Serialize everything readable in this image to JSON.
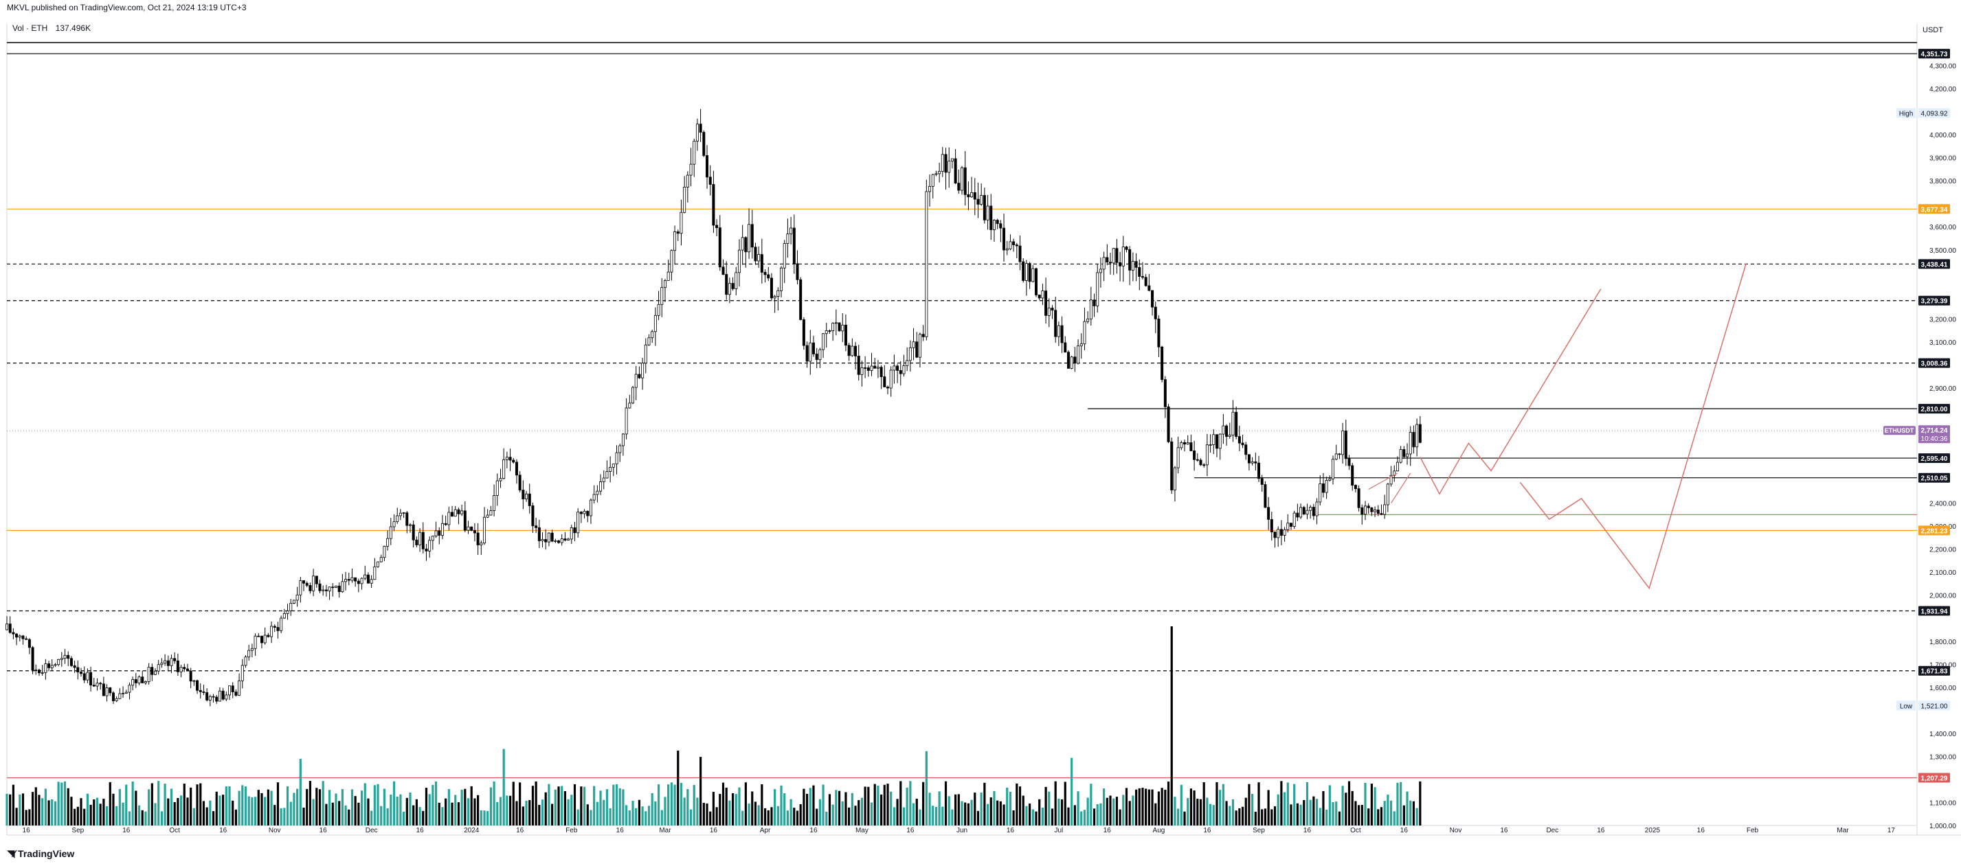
{
  "header": {
    "published_by": "MKVL published on TradingView.com, Oct 21, 2024 13:19 UTC+3"
  },
  "volume_legend": {
    "label": "Vol · ETH",
    "value": "137.496K"
  },
  "price_axis": {
    "currency": "USDT",
    "tick_labels": [
      "4,300.00",
      "4,200.00",
      "4,000.00",
      "3,900.00",
      "3,800.00",
      "3,600.00",
      "3,500.00",
      "3,200.00",
      "3,100.00",
      "2,900.00",
      "2,400.00",
      "2,300.00",
      "2,200.00",
      "2,100.00",
      "2,000.00",
      "1,800.00",
      "1,700.00",
      "1,600.00",
      "1,400.00",
      "1,300.00",
      "1,100.00",
      "1,000.00"
    ]
  },
  "footer": {
    "brand": "TradingView",
    "logo_icon": "tradingview-logo-icon"
  },
  "colors": {
    "background": "#ffffff",
    "candle_up": "#ffffff",
    "candle_down": "#000000",
    "volume_up": "#26a69a",
    "volume_down": "#000000",
    "hline_orange": "#f7a21a",
    "hline_red": "#e05a5a",
    "projection": "#d9726a",
    "symbol_badge": "#9c6fb5",
    "high_low_label": "#e3effd"
  },
  "chart_data": {
    "type": "candlestick",
    "symbol": "ETHUSDT",
    "timeframe": "1D",
    "x_start": "2023-08-10",
    "x_end": "2025-03-24",
    "ylim": [
      1000,
      4400
    ],
    "x_tick_labels": [
      {
        "date": "2023-08-16",
        "label": "16"
      },
      {
        "date": "2023-09-01",
        "label": "Sep"
      },
      {
        "date": "2023-09-16",
        "label": "16"
      },
      {
        "date": "2023-10-01",
        "label": "Oct"
      },
      {
        "date": "2023-10-16",
        "label": "16"
      },
      {
        "date": "2023-11-01",
        "label": "Nov"
      },
      {
        "date": "2023-11-16",
        "label": "16"
      },
      {
        "date": "2023-12-01",
        "label": "Dec"
      },
      {
        "date": "2023-12-16",
        "label": "16"
      },
      {
        "date": "2024-01-01",
        "label": "2024"
      },
      {
        "date": "2024-01-16",
        "label": "16"
      },
      {
        "date": "2024-02-01",
        "label": "Feb"
      },
      {
        "date": "2024-02-16",
        "label": "16"
      },
      {
        "date": "2024-03-01",
        "label": "Mar"
      },
      {
        "date": "2024-03-16",
        "label": "16"
      },
      {
        "date": "2024-04-01",
        "label": "Apr"
      },
      {
        "date": "2024-04-16",
        "label": "16"
      },
      {
        "date": "2024-05-01",
        "label": "May"
      },
      {
        "date": "2024-05-16",
        "label": "16"
      },
      {
        "date": "2024-06-01",
        "label": "Jun"
      },
      {
        "date": "2024-06-16",
        "label": "16"
      },
      {
        "date": "2024-07-01",
        "label": "Jul"
      },
      {
        "date": "2024-07-16",
        "label": "16"
      },
      {
        "date": "2024-08-01",
        "label": "Aug"
      },
      {
        "date": "2024-08-16",
        "label": "16"
      },
      {
        "date": "2024-09-01",
        "label": "Sep"
      },
      {
        "date": "2024-09-16",
        "label": "16"
      },
      {
        "date": "2024-10-01",
        "label": "Oct"
      },
      {
        "date": "2024-10-16",
        "label": "16"
      },
      {
        "date": "2024-11-01",
        "label": "Nov"
      },
      {
        "date": "2024-11-16",
        "label": "16"
      },
      {
        "date": "2024-12-01",
        "label": "Dec"
      },
      {
        "date": "2024-12-16",
        "label": "16"
      },
      {
        "date": "2025-01-01",
        "label": "2025"
      },
      {
        "date": "2025-01-16",
        "label": "16"
      },
      {
        "date": "2025-02-01",
        "label": "Feb"
      },
      {
        "date": "2025-03-01",
        "label": "Mar"
      },
      {
        "date": "2025-03-16",
        "label": "17"
      }
    ],
    "price_anchors": [
      {
        "date": "2023-08-10",
        "price": 1850
      },
      {
        "date": "2023-08-16",
        "price": 1820
      },
      {
        "date": "2023-08-18",
        "price": 1680
      },
      {
        "date": "2023-08-29",
        "price": 1720
      },
      {
        "date": "2023-09-11",
        "price": 1560
      },
      {
        "date": "2023-09-20",
        "price": 1640
      },
      {
        "date": "2023-10-01",
        "price": 1710
      },
      {
        "date": "2023-10-12",
        "price": 1550
      },
      {
        "date": "2023-10-20",
        "price": 1590
      },
      {
        "date": "2023-10-24",
        "price": 1780
      },
      {
        "date": "2023-11-01",
        "price": 1850
      },
      {
        "date": "2023-11-10",
        "price": 2060
      },
      {
        "date": "2023-11-22",
        "price": 2030
      },
      {
        "date": "2023-12-01",
        "price": 2090
      },
      {
        "date": "2023-12-09",
        "price": 2370
      },
      {
        "date": "2023-12-18",
        "price": 2200
      },
      {
        "date": "2023-12-27",
        "price": 2380
      },
      {
        "date": "2024-01-03",
        "price": 2210
      },
      {
        "date": "2024-01-12",
        "price": 2620
      },
      {
        "date": "2024-01-23",
        "price": 2220
      },
      {
        "date": "2024-02-01",
        "price": 2290
      },
      {
        "date": "2024-02-12",
        "price": 2500
      },
      {
        "date": "2024-02-22",
        "price": 2980
      },
      {
        "date": "2024-03-05",
        "price": 3620
      },
      {
        "date": "2024-03-12",
        "price": 4040
      },
      {
        "date": "2024-03-20",
        "price": 3280
      },
      {
        "date": "2024-03-27",
        "price": 3580
      },
      {
        "date": "2024-04-04",
        "price": 3290
      },
      {
        "date": "2024-04-09",
        "price": 3650
      },
      {
        "date": "2024-04-13",
        "price": 3050
      },
      {
        "date": "2024-04-18",
        "price": 3070
      },
      {
        "date": "2024-04-23",
        "price": 3190
      },
      {
        "date": "2024-05-01",
        "price": 2960
      },
      {
        "date": "2024-05-10",
        "price": 2930
      },
      {
        "date": "2024-05-20",
        "price": 3100
      },
      {
        "date": "2024-05-21",
        "price": 3710
      },
      {
        "date": "2024-05-27",
        "price": 3900
      },
      {
        "date": "2024-06-07",
        "price": 3690
      },
      {
        "date": "2024-06-17",
        "price": 3480
      },
      {
        "date": "2024-06-24",
        "price": 3350
      },
      {
        "date": "2024-07-05",
        "price": 3000
      },
      {
        "date": "2024-07-15",
        "price": 3440
      },
      {
        "date": "2024-07-22",
        "price": 3490
      },
      {
        "date": "2024-07-30",
        "price": 3280
      },
      {
        "date": "2024-08-04",
        "price": 2700
      },
      {
        "date": "2024-08-05",
        "price": 2430
      },
      {
        "date": "2024-08-08",
        "price": 2680
      },
      {
        "date": "2024-08-15",
        "price": 2600
      },
      {
        "date": "2024-08-24",
        "price": 2760
      },
      {
        "date": "2024-09-01",
        "price": 2500
      },
      {
        "date": "2024-09-06",
        "price": 2230
      },
      {
        "date": "2024-09-12",
        "price": 2360
      },
      {
        "date": "2024-09-18",
        "price": 2380
      },
      {
        "date": "2024-09-27",
        "price": 2680
      },
      {
        "date": "2024-10-03",
        "price": 2350
      },
      {
        "date": "2024-10-10",
        "price": 2390
      },
      {
        "date": "2024-10-14",
        "price": 2610
      },
      {
        "date": "2024-10-21",
        "price": 2710
      }
    ],
    "volume": {
      "series_name": "Vol · ETH",
      "last_value": "137.496K",
      "spikes": [
        {
          "date": "2023-11-09",
          "value": "high"
        },
        {
          "date": "2024-01-11",
          "value": "high"
        },
        {
          "date": "2024-03-05",
          "value": "high"
        },
        {
          "date": "2024-03-12",
          "value": "high"
        },
        {
          "date": "2024-05-21",
          "value": "high"
        },
        {
          "date": "2024-07-05",
          "value": "high"
        },
        {
          "date": "2024-08-05",
          "value": "extreme"
        }
      ]
    },
    "horizontal_levels": [
      {
        "price": 4351.73,
        "label": "4,351.73",
        "style": "solid",
        "color": "#000000",
        "badge": "dark"
      },
      {
        "price": 3677.34,
        "label": "3,677.34",
        "style": "solid",
        "color": "#f7a21a",
        "badge": "orange"
      },
      {
        "price": 3438.41,
        "label": "3,438.41",
        "style": "dashed",
        "color": "#000000",
        "badge": "dark"
      },
      {
        "price": 3279.39,
        "label": "3,279.39",
        "style": "dashed",
        "color": "#000000",
        "badge": "dark"
      },
      {
        "price": 3008.36,
        "label": "3,008.36",
        "style": "dashed",
        "color": "#000000",
        "badge": "dark"
      },
      {
        "price": 2810.0,
        "label": "2,810.00",
        "style": "solid",
        "color": "#000000",
        "badge": "dark",
        "from": "2024-07-10"
      },
      {
        "price": 2595.4,
        "label": "2,595.40",
        "style": "solid",
        "color": "#000000",
        "badge": "dark",
        "from": "2024-09-28"
      },
      {
        "price": 2510.05,
        "label": "2,510.05",
        "style": "solid",
        "color": "#000000",
        "badge": "dark",
        "from": "2024-08-12"
      },
      {
        "price": 2281.23,
        "label": "2,281.23",
        "style": "solid",
        "color": "#f7a21a",
        "badge": "orange"
      },
      {
        "price": 1931.94,
        "label": "1,931.94",
        "style": "dashed",
        "color": "#000000",
        "badge": "dark"
      },
      {
        "price": 1671.83,
        "label": "1,671.83",
        "style": "dashed",
        "color": "#000000",
        "badge": "dark"
      },
      {
        "price": 1207.29,
        "label": "1,207.29",
        "style": "solid",
        "color": "#e05a5a",
        "badge": "red"
      }
    ],
    "red_level": {
      "price": 2350,
      "from": "2024-09-18"
    },
    "symbol_badge": {
      "price": 2714.24,
      "symbol": "ETHUSDT",
      "price_label": "2,714.24",
      "countdown": "10:40:36"
    },
    "high_label": {
      "price": 4093.92,
      "text": "High",
      "value": "4,093.92"
    },
    "low_label": {
      "price": 1521.0,
      "text": "Low",
      "value": "1,521.00"
    },
    "projections": [
      {
        "name": "path-a",
        "points": [
          {
            "date": "2024-10-21",
            "price": 2600
          },
          {
            "date": "2024-10-27",
            "price": 2440
          },
          {
            "date": "2024-11-05",
            "price": 2660
          },
          {
            "date": "2024-11-12",
            "price": 2540
          },
          {
            "date": "2024-12-16",
            "price": 3330
          }
        ]
      },
      {
        "name": "path-b",
        "points": [
          {
            "date": "2024-11-21",
            "price": 2490
          },
          {
            "date": "2024-11-30",
            "price": 2330
          },
          {
            "date": "2024-12-10",
            "price": 2420
          },
          {
            "date": "2024-12-31",
            "price": 2030
          },
          {
            "date": "2025-01-30",
            "price": 3440
          }
        ]
      }
    ],
    "channel_lines": [
      {
        "points": [
          {
            "date": "2024-10-12",
            "price": 2400
          },
          {
            "date": "2024-10-18",
            "price": 2530
          }
        ]
      },
      {
        "points": [
          {
            "date": "2024-10-05",
            "price": 2460
          },
          {
            "date": "2024-10-14",
            "price": 2530
          }
        ]
      }
    ]
  }
}
